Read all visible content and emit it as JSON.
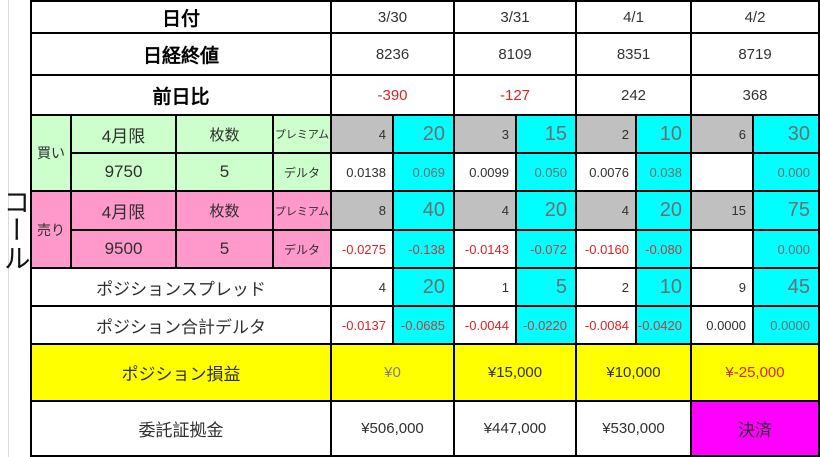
{
  "side_label": "コール",
  "header": {
    "date": {
      "label": "日付",
      "values": [
        "3/30",
        "3/31",
        "4/1",
        "4/2"
      ]
    },
    "close": {
      "label": "日経終値",
      "values": [
        "8236",
        "8109",
        "8351",
        "8719"
      ]
    },
    "change": {
      "label": "前日比",
      "values": [
        "-390",
        "-127",
        "242",
        "368"
      ]
    }
  },
  "buy": {
    "side_label": "買い",
    "contract": "4月限",
    "lots_header": "枚数",
    "premium_label": "プレミアム",
    "delta_label": "デルタ",
    "strike": "9750",
    "lots": "5",
    "premium": [
      [
        "4",
        "20"
      ],
      [
        "3",
        "15"
      ],
      [
        "2",
        "10"
      ],
      [
        "6",
        "30"
      ]
    ],
    "delta": [
      [
        "0.0138",
        "0.069"
      ],
      [
        "0.0099",
        "0.050"
      ],
      [
        "0.0076",
        "0.038"
      ],
      [
        "",
        "0.000"
      ]
    ]
  },
  "sell": {
    "side_label": "売り",
    "contract": "4月限",
    "lots_header": "枚数",
    "premium_label": "プレミアム",
    "delta_label": "デルタ",
    "strike": "9500",
    "lots": "5",
    "premium": [
      [
        "8",
        "40"
      ],
      [
        "4",
        "20"
      ],
      [
        "4",
        "20"
      ],
      [
        "15",
        "75"
      ]
    ],
    "delta": [
      [
        "-0.0275",
        "-0.138"
      ],
      [
        "-0.0143",
        "-0.072"
      ],
      [
        "-0.0160",
        "-0.080"
      ],
      [
        "",
        "0.000"
      ]
    ]
  },
  "spread": {
    "label": "ポジションスプレッド",
    "values": [
      [
        "4",
        "20"
      ],
      [
        "1",
        "5"
      ],
      [
        "2",
        "10"
      ],
      [
        "9",
        "45"
      ]
    ]
  },
  "total_delta": {
    "label": "ポジション合計デルタ",
    "values": [
      [
        "-0.0137",
        "-0.0685"
      ],
      [
        "-0.0044",
        "-0.0220"
      ],
      [
        "-0.0084",
        "-0.0420"
      ],
      [
        "0.0000",
        "0.0000"
      ]
    ]
  },
  "pnl": {
    "label": "ポジション損益",
    "values": [
      "¥0",
      "¥15,000",
      "¥10,000",
      "¥-25,000"
    ]
  },
  "margin": {
    "label": "委託証拠金",
    "values": [
      "¥506,000",
      "¥447,000",
      "¥530,000"
    ],
    "last_cell": "決済"
  },
  "colors": {
    "buy_bg": "#ccffcc",
    "sell_bg": "#ff99cc",
    "qty_bg": "#c0c0c0",
    "cyan_bg": "#00ffff",
    "pnl_bg": "#ffff00",
    "settle_bg": "#ff00ff",
    "negative_text": "#dd2222",
    "gray_on_cyan_text": "#6e6e6e",
    "border": "#000000"
  }
}
